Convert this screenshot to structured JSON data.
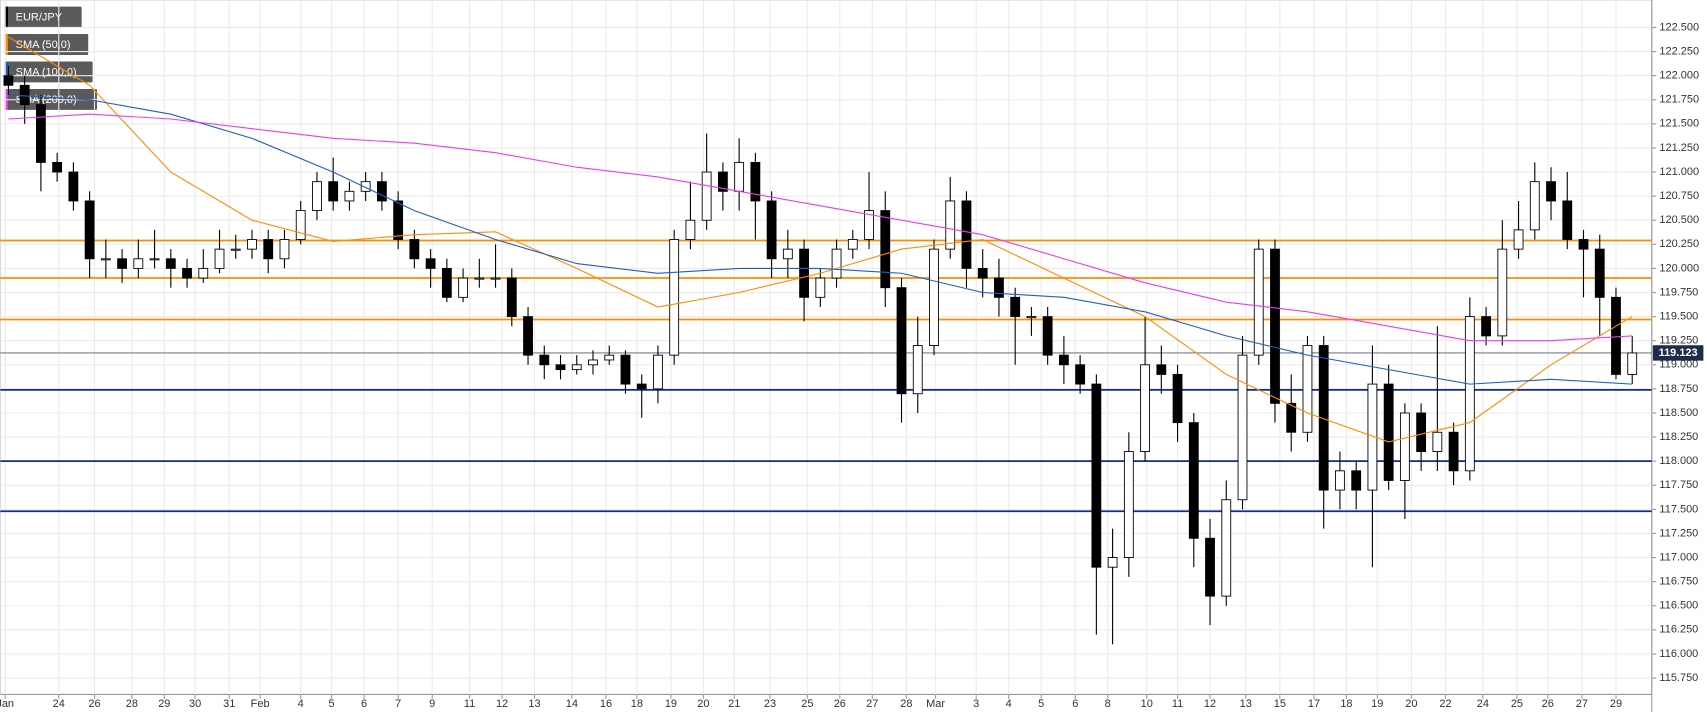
{
  "chart_data": {
    "type": "candlestick",
    "title": "EUR/JPY",
    "xlim": [
      -0.5,
      101
    ],
    "ylim": [
      115.58,
      122.785
    ],
    "grid": true,
    "up_color": "#ffffff",
    "down_color": "#000000",
    "xticks": [
      {
        "value": -0.2,
        "label": "Jan"
      },
      {
        "value": 3.1,
        "label": "24"
      },
      {
        "value": 5.3,
        "label": "26"
      },
      {
        "value": 7.6,
        "label": "28"
      },
      {
        "value": 9.6,
        "label": "29"
      },
      {
        "value": 11.5,
        "label": "30"
      },
      {
        "value": 13.6,
        "label": "31"
      },
      {
        "value": 15.5,
        "label": "Feb"
      },
      {
        "value": 18.0,
        "label": "4"
      },
      {
        "value": 19.9,
        "label": "5"
      },
      {
        "value": 21.9,
        "label": "6"
      },
      {
        "value": 24.0,
        "label": "7"
      },
      {
        "value": 26.1,
        "label": "9"
      },
      {
        "value": 28.4,
        "label": "11"
      },
      {
        "value": 30.4,
        "label": "12"
      },
      {
        "value": 32.4,
        "label": "13"
      },
      {
        "value": 34.7,
        "label": "14"
      },
      {
        "value": 36.8,
        "label": "16"
      },
      {
        "value": 38.7,
        "label": "18"
      },
      {
        "value": 40.8,
        "label": "19"
      },
      {
        "value": 42.8,
        "label": "20"
      },
      {
        "value": 44.7,
        "label": "21"
      },
      {
        "value": 46.9,
        "label": "23"
      },
      {
        "value": 49.2,
        "label": "25"
      },
      {
        "value": 51.2,
        "label": "26"
      },
      {
        "value": 53.2,
        "label": "27"
      },
      {
        "value": 55.3,
        "label": "28"
      },
      {
        "value": 57.1,
        "label": "Mar"
      },
      {
        "value": 59.6,
        "label": "3"
      },
      {
        "value": 61.6,
        "label": "4"
      },
      {
        "value": 63.6,
        "label": "5"
      },
      {
        "value": 65.7,
        "label": "6"
      },
      {
        "value": 67.7,
        "label": "8"
      },
      {
        "value": 70.1,
        "label": "10"
      },
      {
        "value": 72.0,
        "label": "11"
      },
      {
        "value": 74.0,
        "label": "12"
      },
      {
        "value": 76.2,
        "label": "13"
      },
      {
        "value": 78.3,
        "label": "15"
      },
      {
        "value": 80.4,
        "label": "17"
      },
      {
        "value": 82.4,
        "label": "18"
      },
      {
        "value": 84.3,
        "label": "19"
      },
      {
        "value": 86.4,
        "label": "20"
      },
      {
        "value": 88.5,
        "label": "22"
      },
      {
        "value": 90.8,
        "label": "24"
      },
      {
        "value": 92.9,
        "label": "25"
      },
      {
        "value": 94.8,
        "label": "26"
      },
      {
        "value": 96.9,
        "label": "27"
      },
      {
        "value": 99.0,
        "label": "29"
      }
    ],
    "yticks": [
      {
        "value": 115.75,
        "label": "115.750"
      },
      {
        "value": 116.0,
        "label": "116.000"
      },
      {
        "value": 116.25,
        "label": "116.250"
      },
      {
        "value": 116.5,
        "label": "116.500"
      },
      {
        "value": 116.75,
        "label": "116.750"
      },
      {
        "value": 117.0,
        "label": "117.000"
      },
      {
        "value": 117.25,
        "label": "117.250"
      },
      {
        "value": 117.5,
        "label": "117.500"
      },
      {
        "value": 117.75,
        "label": "117.750"
      },
      {
        "value": 118.0,
        "label": "118.000"
      },
      {
        "value": 118.25,
        "label": "118.250"
      },
      {
        "value": 118.5,
        "label": "118.500"
      },
      {
        "value": 118.75,
        "label": "118.750"
      },
      {
        "value": 119.0,
        "label": "119.000"
      },
      {
        "value": 119.25,
        "label": "119.250"
      },
      {
        "value": 119.5,
        "label": "119.500"
      },
      {
        "value": 119.75,
        "label": "119.750"
      },
      {
        "value": 120.0,
        "label": "120.000"
      },
      {
        "value": 120.25,
        "label": "120.250"
      },
      {
        "value": 120.5,
        "label": "120.500"
      },
      {
        "value": 120.75,
        "label": "120.750"
      },
      {
        "value": 121.0,
        "label": "121.000"
      },
      {
        "value": 121.25,
        "label": "121.250"
      },
      {
        "value": 121.5,
        "label": "121.500"
      },
      {
        "value": 121.75,
        "label": "121.750"
      },
      {
        "value": 122.0,
        "label": "122.000"
      },
      {
        "value": 122.25,
        "label": "122.250"
      },
      {
        "value": 122.5,
        "label": "122.500"
      }
    ],
    "candles": [
      [
        122.0,
        122.1,
        121.8,
        121.9
      ],
      [
        121.9,
        122.0,
        121.5,
        121.7
      ],
      [
        121.7,
        121.8,
        120.8,
        121.1
      ],
      [
        121.1,
        121.2,
        120.9,
        121.0
      ],
      [
        121.0,
        121.1,
        120.6,
        120.7
      ],
      [
        120.7,
        120.8,
        119.9,
        120.1
      ],
      [
        120.1,
        120.3,
        119.9,
        120.1
      ],
      [
        120.1,
        120.2,
        119.85,
        120.0
      ],
      [
        120.0,
        120.3,
        119.9,
        120.1
      ],
      [
        120.1,
        120.4,
        120.0,
        120.1
      ],
      [
        120.1,
        120.2,
        119.8,
        120.0
      ],
      [
        120.0,
        120.1,
        119.8,
        119.9
      ],
      [
        119.9,
        120.2,
        119.85,
        120.0
      ],
      [
        120.0,
        120.4,
        119.95,
        120.2
      ],
      [
        120.2,
        120.35,
        120.1,
        120.2
      ],
      [
        120.2,
        120.4,
        120.1,
        120.3
      ],
      [
        120.3,
        120.4,
        119.95,
        120.1
      ],
      [
        120.1,
        120.4,
        120.0,
        120.3
      ],
      [
        120.3,
        120.7,
        120.25,
        120.6
      ],
      [
        120.6,
        121.0,
        120.5,
        120.9
      ],
      [
        120.9,
        121.15,
        120.6,
        120.7
      ],
      [
        120.7,
        120.9,
        120.6,
        120.8
      ],
      [
        120.8,
        121.0,
        120.7,
        120.9
      ],
      [
        120.9,
        121.0,
        120.6,
        120.7
      ],
      [
        120.7,
        120.8,
        120.2,
        120.3
      ],
      [
        120.3,
        120.4,
        120.0,
        120.1
      ],
      [
        120.1,
        120.2,
        119.8,
        120.0
      ],
      [
        120.0,
        120.1,
        119.65,
        119.7
      ],
      [
        119.7,
        120.0,
        119.65,
        119.9
      ],
      [
        119.9,
        120.1,
        119.8,
        119.9
      ],
      [
        119.9,
        120.25,
        119.8,
        119.9
      ],
      [
        119.9,
        120.0,
        119.4,
        119.5
      ],
      [
        119.5,
        119.6,
        119.0,
        119.1
      ],
      [
        119.1,
        119.2,
        118.85,
        119.0
      ],
      [
        119.0,
        119.1,
        118.85,
        118.95
      ],
      [
        118.95,
        119.1,
        118.9,
        119.0
      ],
      [
        119.0,
        119.15,
        118.9,
        119.05
      ],
      [
        119.05,
        119.2,
        119.0,
        119.1
      ],
      [
        119.1,
        119.15,
        118.7,
        118.8
      ],
      [
        118.8,
        118.9,
        118.45,
        118.75
      ],
      [
        118.75,
        119.2,
        118.6,
        119.1
      ],
      [
        119.1,
        120.4,
        119.0,
        120.3
      ],
      [
        120.3,
        120.9,
        120.2,
        120.5
      ],
      [
        120.5,
        121.4,
        120.4,
        121.0
      ],
      [
        121.0,
        121.1,
        120.6,
        120.8
      ],
      [
        120.8,
        121.35,
        120.6,
        121.1
      ],
      [
        121.1,
        121.2,
        120.3,
        120.7
      ],
      [
        120.7,
        120.8,
        119.9,
        120.1
      ],
      [
        120.1,
        120.4,
        119.9,
        120.2
      ],
      [
        120.2,
        120.3,
        119.45,
        119.7
      ],
      [
        119.7,
        120.0,
        119.6,
        119.9
      ],
      [
        119.9,
        120.3,
        119.8,
        120.2
      ],
      [
        120.2,
        120.4,
        120.1,
        120.3
      ],
      [
        120.3,
        121.0,
        120.2,
        120.6
      ],
      [
        120.6,
        120.8,
        119.6,
        119.8
      ],
      [
        119.8,
        119.9,
        118.4,
        118.7
      ],
      [
        118.7,
        119.5,
        118.5,
        119.2
      ],
      [
        119.2,
        120.3,
        119.1,
        120.2
      ],
      [
        120.2,
        120.95,
        120.1,
        120.7
      ],
      [
        120.7,
        120.8,
        119.8,
        120.0
      ],
      [
        120.0,
        120.2,
        119.7,
        119.9
      ],
      [
        119.9,
        120.1,
        119.5,
        119.7
      ],
      [
        119.7,
        119.8,
        119.0,
        119.5
      ],
      [
        119.5,
        119.6,
        119.3,
        119.5
      ],
      [
        119.5,
        119.6,
        119.0,
        119.1
      ],
      [
        119.1,
        119.3,
        118.8,
        119.0
      ],
      [
        119.0,
        119.1,
        118.7,
        118.8
      ],
      [
        118.8,
        118.9,
        116.2,
        116.9
      ],
      [
        116.9,
        117.3,
        116.1,
        117.0
      ],
      [
        117.0,
        118.3,
        116.8,
        118.1
      ],
      [
        118.1,
        119.5,
        118.0,
        119.0
      ],
      [
        119.0,
        119.2,
        118.7,
        118.9
      ],
      [
        118.9,
        119.0,
        118.2,
        118.4
      ],
      [
        118.4,
        118.5,
        116.9,
        117.2
      ],
      [
        117.2,
        117.4,
        116.3,
        116.6
      ],
      [
        116.6,
        117.8,
        116.5,
        117.6
      ],
      [
        117.6,
        119.3,
        117.5,
        119.1
      ],
      [
        119.1,
        120.3,
        119.0,
        120.2
      ],
      [
        120.2,
        120.3,
        118.4,
        118.6
      ],
      [
        118.6,
        118.9,
        118.1,
        118.3
      ],
      [
        118.3,
        119.3,
        118.2,
        119.2
      ],
      [
        119.2,
        119.3,
        117.3,
        117.7
      ],
      [
        117.7,
        118.1,
        117.5,
        117.9
      ],
      [
        117.9,
        118.0,
        117.5,
        117.7
      ],
      [
        117.7,
        119.2,
        116.9,
        118.8
      ],
      [
        118.8,
        119.0,
        117.7,
        117.8
      ],
      [
        117.8,
        118.6,
        117.4,
        118.5
      ],
      [
        118.5,
        118.6,
        117.9,
        118.1
      ],
      [
        118.1,
        119.4,
        117.9,
        118.3
      ],
      [
        118.3,
        118.4,
        117.75,
        117.9
      ],
      [
        117.9,
        119.7,
        117.8,
        119.5
      ],
      [
        119.5,
        119.6,
        119.2,
        119.3
      ],
      [
        119.3,
        120.5,
        119.2,
        120.2
      ],
      [
        120.2,
        120.7,
        120.1,
        120.4
      ],
      [
        120.4,
        121.1,
        120.3,
        120.9
      ],
      [
        120.9,
        121.05,
        120.5,
        120.7
      ],
      [
        120.7,
        121.0,
        120.2,
        120.3
      ],
      [
        120.3,
        120.4,
        119.7,
        120.2
      ],
      [
        120.2,
        120.35,
        119.3,
        119.7
      ],
      [
        119.7,
        119.8,
        118.85,
        118.9
      ],
      [
        118.9,
        119.3,
        118.8,
        119.123
      ]
    ],
    "series": [
      {
        "name": "SMA (50,0)",
        "color": "#ff8c00",
        "x": [
          0,
          5,
          10,
          15,
          20,
          25,
          30,
          35,
          40,
          45,
          50,
          55,
          60,
          65,
          70,
          75,
          80,
          85,
          90,
          95,
          100
        ],
        "values": [
          122.4,
          121.9,
          121.0,
          120.5,
          120.28,
          120.35,
          120.38,
          120.0,
          119.6,
          119.75,
          119.95,
          120.2,
          120.3,
          119.9,
          119.5,
          118.9,
          118.5,
          118.2,
          118.4,
          119.0,
          119.5
        ]
      },
      {
        "name": "SMA (100,0)",
        "color": "#1f5fbf",
        "x": [
          0,
          5,
          10,
          15,
          20,
          25,
          30,
          35,
          40,
          45,
          50,
          55,
          60,
          65,
          70,
          75,
          80,
          85,
          90,
          95,
          100
        ],
        "values": [
          121.8,
          121.75,
          121.6,
          121.35,
          121.0,
          120.6,
          120.3,
          120.05,
          119.95,
          120.0,
          120.0,
          119.95,
          119.75,
          119.7,
          119.55,
          119.3,
          119.1,
          118.95,
          118.8,
          118.85,
          118.8
        ]
      },
      {
        "name": "SMA (200,0)",
        "color": "#e83ee8",
        "x": [
          0,
          5,
          10,
          15,
          20,
          25,
          30,
          35,
          40,
          45,
          50,
          55,
          60,
          65,
          70,
          75,
          80,
          85,
          90,
          95,
          100
        ],
        "values": [
          121.55,
          121.6,
          121.55,
          121.45,
          121.35,
          121.3,
          121.2,
          121.05,
          120.95,
          120.8,
          120.65,
          120.5,
          120.35,
          120.1,
          119.85,
          119.65,
          119.55,
          119.4,
          119.25,
          119.25,
          119.3
        ]
      }
    ],
    "levels": [
      {
        "value": 120.29,
        "color": "#ff8c00"
      },
      {
        "value": 119.9,
        "color": "#ff8c00"
      },
      {
        "value": 119.47,
        "color": "#ff8c00"
      },
      {
        "value": 118.74,
        "color": "#0b2f8a"
      },
      {
        "value": 118.0,
        "color": "#0b2f8a"
      },
      {
        "value": 117.48,
        "color": "#0b2f8a"
      }
    ],
    "last_price": {
      "value": 119.123,
      "label": "119.123"
    }
  }
}
